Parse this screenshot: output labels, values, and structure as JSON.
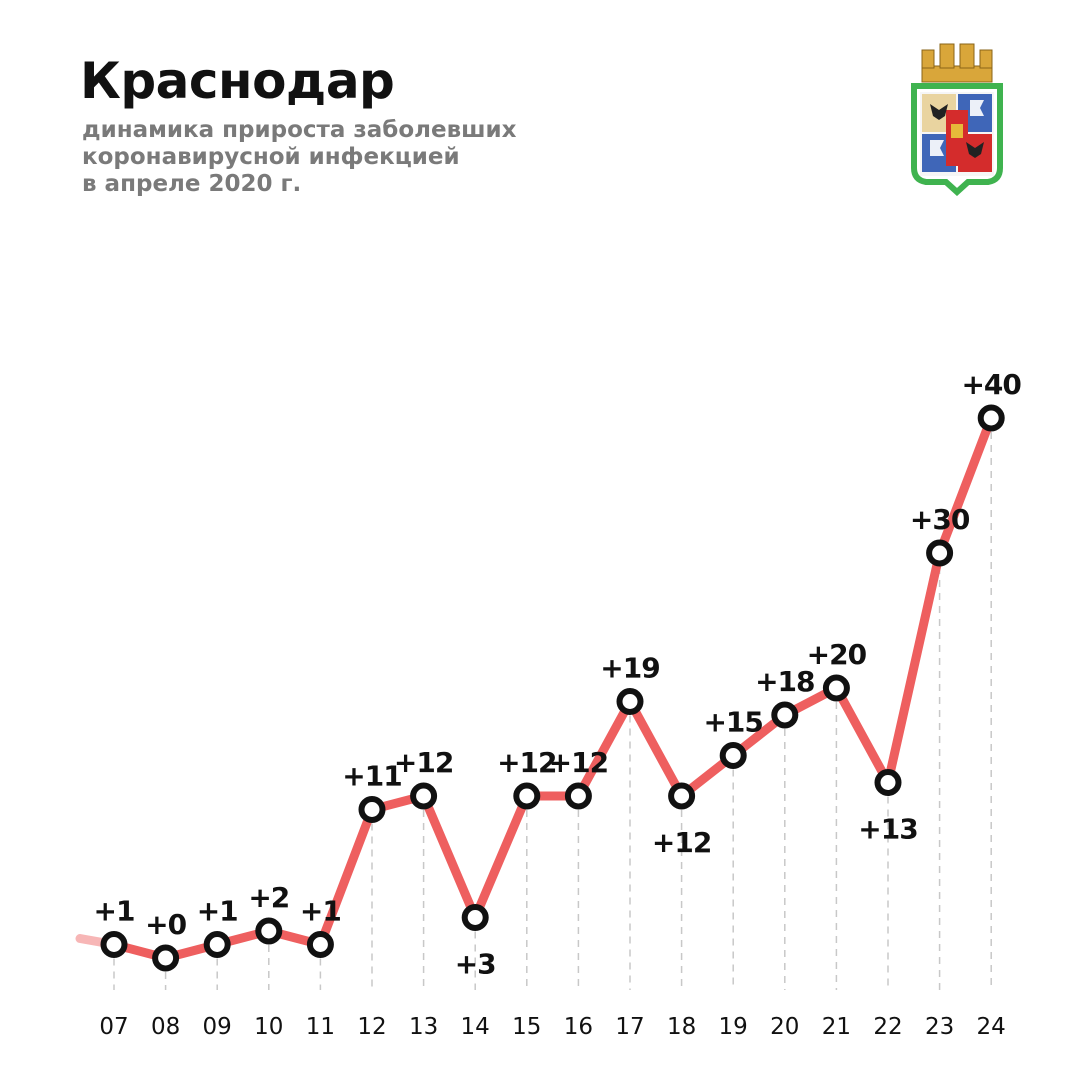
{
  "header": {
    "title": "Краснодар",
    "subtitle_lines": [
      "динамика прироста заболевших",
      "коронавирусной инфекцией",
      "в апреле 2020 г."
    ]
  },
  "emblem": {
    "icon": "city-coat-of-arms-icon"
  },
  "colors": {
    "line": "#ee5f5f",
    "marker_stroke": "#111111",
    "marker_fill": "#ffffff",
    "grid": "#c8c8c8",
    "emblem_border": "#3fb34f"
  },
  "chart_data": {
    "type": "line",
    "title": "Краснодар",
    "subtitle": "динамика прироста заболевших коронавирусной инфекцией в апреле 2020 г.",
    "categories": [
      "07",
      "08",
      "09",
      "10",
      "11",
      "12",
      "13",
      "14",
      "15",
      "16",
      "17",
      "18",
      "19",
      "20",
      "21",
      "22",
      "23",
      "24"
    ],
    "series": [
      {
        "values": [
          1,
          0,
          1,
          2,
          1,
          11,
          12,
          3,
          12,
          12,
          19,
          12,
          15,
          18,
          20,
          13,
          30,
          40
        ],
        "labels": [
          "+1",
          "+0",
          "+1",
          "+2",
          "+1",
          "+11",
          "+12",
          "+3",
          "+12",
          "+12",
          "+19",
          "+12",
          "+15",
          "+18",
          "+20",
          "+13",
          "+30",
          "+40"
        ],
        "label_positions": [
          "above",
          "above",
          "above",
          "above",
          "above",
          "above",
          "above",
          "below",
          "above",
          "above",
          "above",
          "below",
          "above",
          "above",
          "above",
          "below",
          "above",
          "above"
        ]
      }
    ],
    "ylim": [
      0,
      40
    ],
    "grid": "vertical dashed drop lines",
    "legend": "none"
  }
}
